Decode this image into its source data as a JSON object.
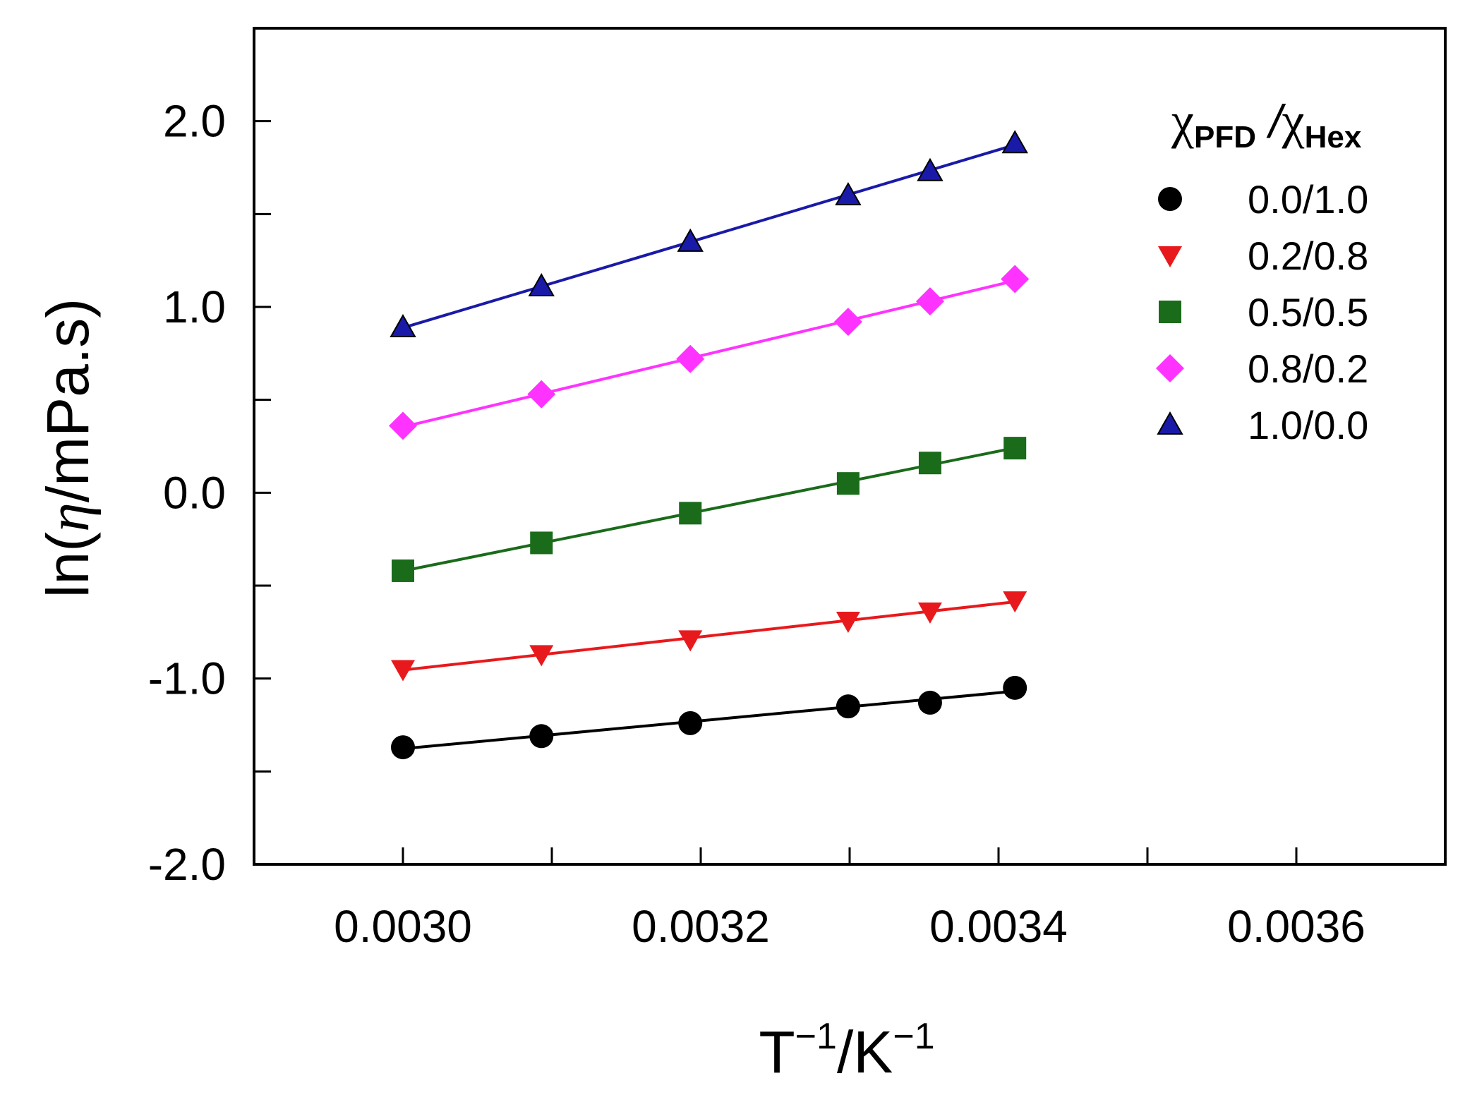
{
  "chart_data": {
    "type": "line",
    "xlabel": {
      "base": "T",
      "base_sup": "−1",
      "sep": "/K",
      "sep_sup": "−1"
    },
    "ylabel": {
      "pre": "ln(",
      "symbol": "η",
      "post": "/mPa.s)"
    },
    "xlim": [
      0.0029,
      0.0037
    ],
    "ylim": [
      -2.0,
      2.5
    ],
    "x_ticks": [
      0.0029,
      0.003,
      0.0031,
      0.0032,
      0.0033,
      0.0034,
      0.0035,
      0.0036
    ],
    "x_tick_labels": [
      "0.0030",
      "0.0032",
      "0.0034",
      "0.0036"
    ],
    "x_tick_label_values": [
      0.003,
      0.0032,
      0.0034,
      0.0036
    ],
    "y_ticks": [
      -2.0,
      -1.5,
      -1.0,
      -0.5,
      0.0,
      0.5,
      1.0,
      1.5,
      2.0
    ],
    "y_tick_labels": [
      "-2.0",
      "-1.0",
      "0.0",
      "1.0",
      "2.0"
    ],
    "y_tick_label_values": [
      -2.0,
      -1.0,
      0.0,
      1.0,
      2.0
    ],
    "legend": {
      "title": {
        "chi1": "χ",
        "sub1": "PFD",
        "slash": " /",
        "chi2": "χ",
        "sub2": "Hex"
      },
      "position": "top-right"
    },
    "x": [
      0.003,
      0.003093,
      0.003193,
      0.003299,
      0.003354,
      0.003411
    ],
    "series": [
      {
        "name": "0.0/1.0",
        "color": "#000000",
        "marker": "circle",
        "values": [
          -1.37,
          -1.31,
          -1.24,
          -1.15,
          -1.13,
          -1.05
        ]
      },
      {
        "name": "0.2/0.8",
        "color": "#e8191c",
        "marker": "triangle-down",
        "values": [
          -0.95,
          -0.87,
          -0.79,
          -0.69,
          -0.64,
          -0.58
        ]
      },
      {
        "name": "0.5/0.5",
        "color": "#1a6b1a",
        "marker": "square",
        "values": [
          -0.42,
          -0.27,
          -0.11,
          0.05,
          0.16,
          0.24
        ]
      },
      {
        "name": "0.8/0.2",
        "color": "#ff33ff",
        "marker": "diamond",
        "values": [
          0.36,
          0.53,
          0.72,
          0.92,
          1.03,
          1.15
        ]
      },
      {
        "name": "1.0/0.0",
        "color": "#1a1aa8",
        "marker": "triangle-up",
        "values": [
          0.89,
          1.11,
          1.35,
          1.6,
          1.73,
          1.88
        ]
      }
    ]
  }
}
